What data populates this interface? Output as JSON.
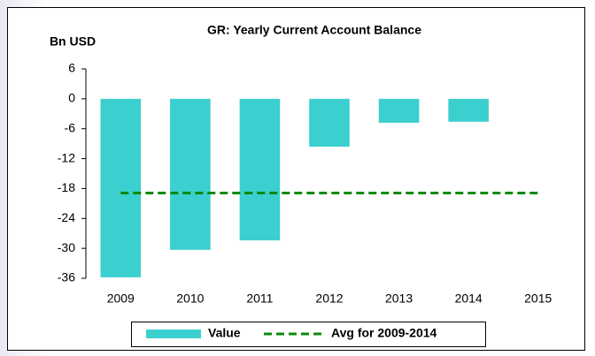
{
  "chart_data": {
    "type": "bar",
    "title": "GR: Yearly Current Account Balance",
    "y_label": "Bn USD",
    "categories": [
      "2009",
      "2010",
      "2011",
      "2012",
      "2013",
      "2014",
      "2015"
    ],
    "series": [
      {
        "name": "Value",
        "color": "#3ccfcf",
        "type": "bar",
        "values": [
          -35.8,
          -30.3,
          -28.4,
          -9.6,
          -4.8,
          -4.6,
          null
        ]
      },
      {
        "name": "Avg for 2009-2014",
        "color": "#0b8a0b",
        "type": "line",
        "values": [
          -18.9,
          -18.9,
          -18.9,
          -18.9,
          -18.9,
          -18.9,
          -18.9
        ]
      }
    ],
    "ylim": [
      -36,
      6
    ],
    "yticks": [
      6,
      0,
      -6,
      -12,
      -18,
      -24,
      -30,
      -36
    ],
    "grid": false
  }
}
